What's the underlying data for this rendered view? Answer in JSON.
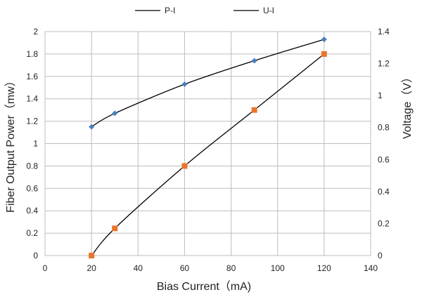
{
  "chart_data": {
    "type": "line",
    "xlabel": "Bias Current（mA)",
    "ylabel_left": "Fiber Output Power（mw）",
    "ylabel_right": "Voltage（V）",
    "xlim": [
      0,
      140
    ],
    "xticks": [
      0,
      20,
      40,
      60,
      80,
      100,
      120,
      140
    ],
    "ylim_left": [
      0,
      2
    ],
    "yticks_left": [
      0,
      0.2,
      0.4,
      0.6,
      0.8,
      1,
      1.2,
      1.4,
      1.6,
      1.8,
      2
    ],
    "ylim_right": [
      0,
      1.4
    ],
    "yticks_right": [
      0,
      0.2,
      0.4,
      0.6,
      0.8,
      1,
      1.2,
      1.4
    ],
    "grid": true,
    "legend_position": "top-center",
    "series": [
      {
        "name": "P-I",
        "axis": "left",
        "marker": "diamond",
        "marker_color": "#4a7fc1",
        "x": [
          20,
          30,
          60,
          90,
          120
        ],
        "y": [
          1.15,
          1.27,
          1.53,
          1.74,
          1.93
        ]
      },
      {
        "name": "U-I",
        "axis": "right",
        "marker": "square",
        "marker_color": "#e8752e",
        "x": [
          20,
          30,
          60,
          90,
          120
        ],
        "y": [
          0,
          0.17,
          0.56,
          0.91,
          1.26
        ]
      }
    ]
  }
}
